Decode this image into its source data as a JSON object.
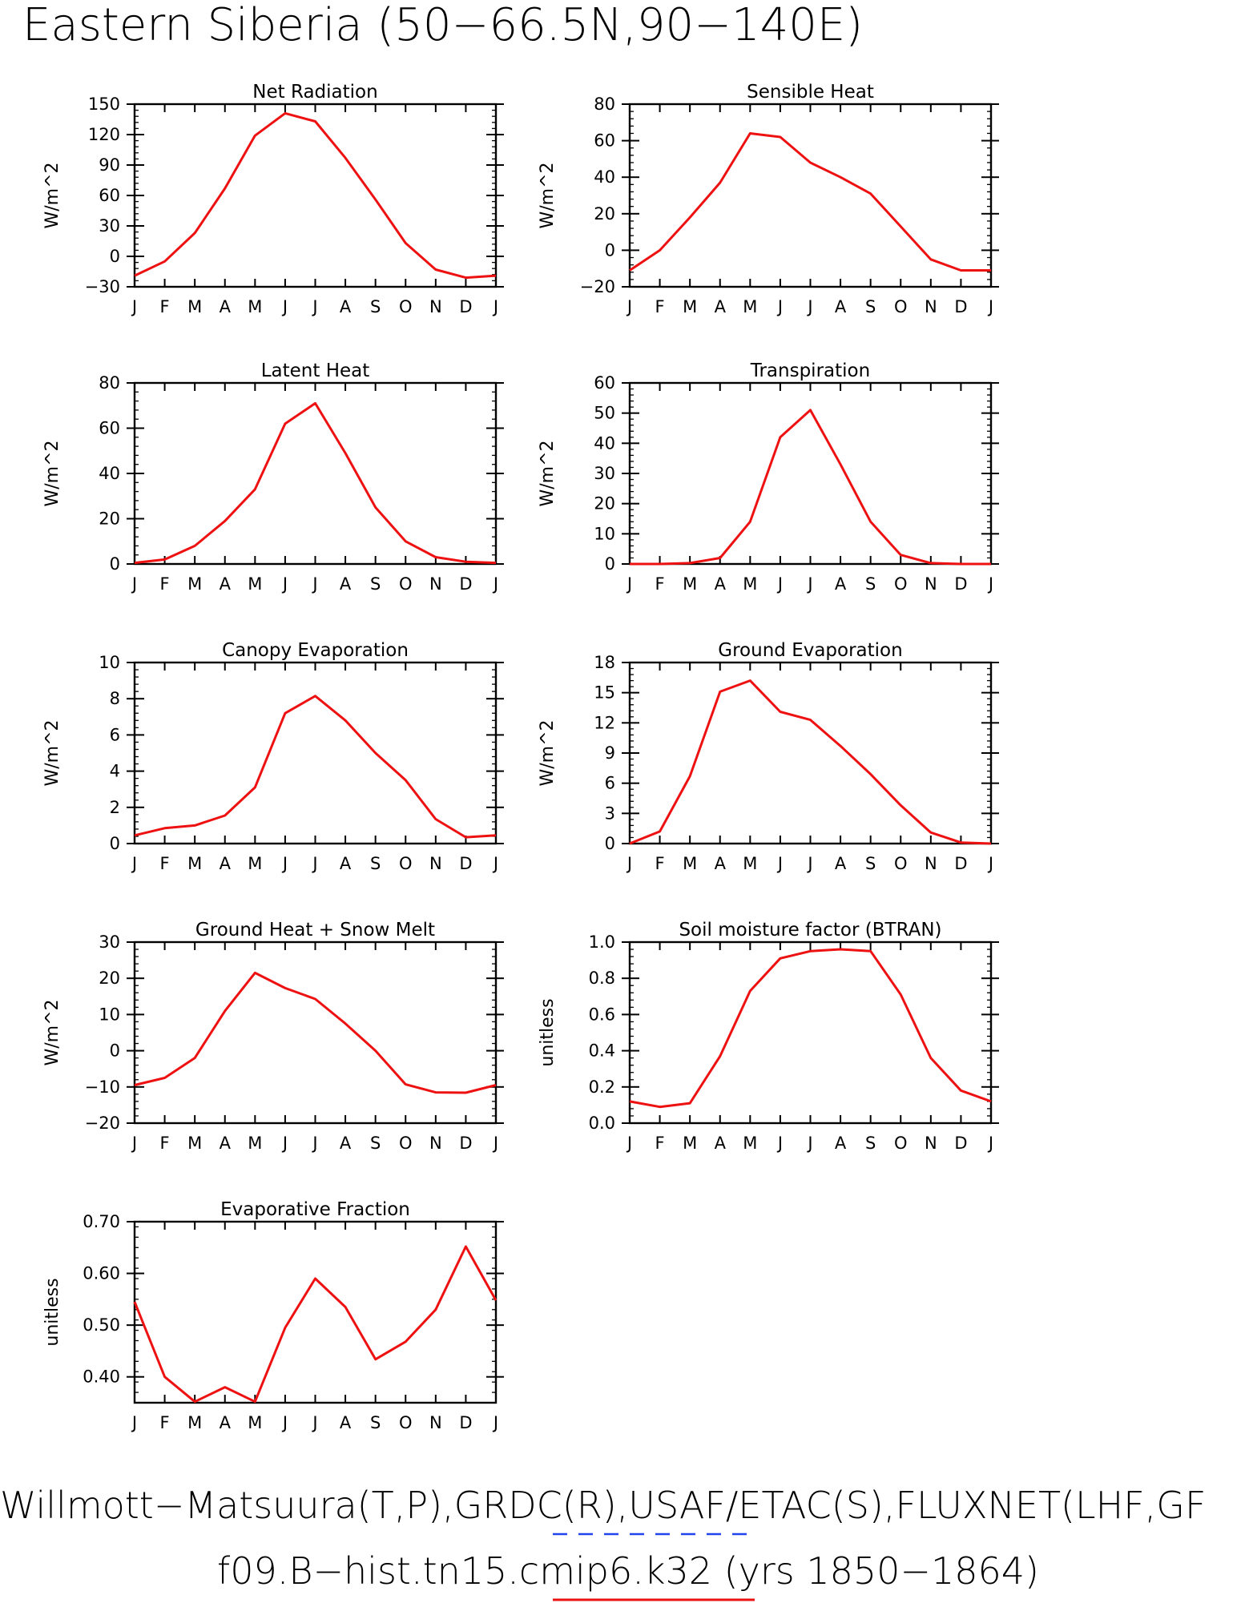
{
  "title": "Eastern Siberia (50−66.5N,90−140E)",
  "footer": {
    "line1": "Willmott−Matsuura(T,P),GRDC(R),USAF/ETAC(S),FLUXNET(LHF,GF",
    "line2": "f09.B−hist.tn15.cmip6.k32 (yrs 1850−1864)"
  },
  "colors": {
    "model_line": "#ee1111",
    "obs_line": "#2244ee"
  },
  "chart_data": [
    {
      "type": "line",
      "title": "Net Radiation",
      "ylabel": "W/m^2",
      "categories": [
        "J",
        "F",
        "M",
        "A",
        "M",
        "J",
        "J",
        "A",
        "S",
        "O",
        "N",
        "D",
        "J"
      ],
      "ylim": [
        -30,
        150
      ],
      "yticks": [
        -30,
        0,
        30,
        60,
        90,
        120,
        150
      ],
      "series": [
        {
          "values": [
            -19,
            -5,
            23,
            67,
            119,
            141,
            133,
            97,
            56,
            13,
            -13,
            -21,
            -19
          ]
        }
      ]
    },
    {
      "type": "line",
      "title": "Sensible Heat",
      "ylabel": "W/m^2",
      "categories": [
        "J",
        "F",
        "M",
        "A",
        "M",
        "J",
        "J",
        "A",
        "S",
        "O",
        "N",
        "D",
        "J"
      ],
      "ylim": [
        -20,
        80
      ],
      "yticks": [
        -20,
        0,
        20,
        40,
        60,
        80
      ],
      "series": [
        {
          "values": [
            -11,
            0,
            18,
            37,
            64,
            62,
            48,
            40,
            31,
            13,
            -5,
            -11,
            -11
          ]
        }
      ]
    },
    {
      "type": "line",
      "title": "Latent Heat",
      "ylabel": "W/m^2",
      "categories": [
        "J",
        "F",
        "M",
        "A",
        "M",
        "J",
        "J",
        "A",
        "S",
        "O",
        "N",
        "D",
        "J"
      ],
      "ylim": [
        0,
        80
      ],
      "yticks": [
        0,
        20,
        40,
        60,
        80
      ],
      "series": [
        {
          "values": [
            0.5,
            2,
            8,
            19,
            33,
            62,
            71,
            49,
            25,
            10,
            3,
            1,
            0.5
          ]
        }
      ]
    },
    {
      "type": "line",
      "title": "Transpiration",
      "ylabel": "W/m^2",
      "categories": [
        "J",
        "F",
        "M",
        "A",
        "M",
        "J",
        "J",
        "A",
        "S",
        "O",
        "N",
        "D",
        "J"
      ],
      "ylim": [
        0,
        60
      ],
      "yticks": [
        0,
        10,
        20,
        30,
        40,
        50,
        60
      ],
      "series": [
        {
          "values": [
            0,
            0,
            0.3,
            2,
            14,
            42,
            51,
            33,
            14,
            3,
            0.3,
            0,
            0
          ]
        }
      ]
    },
    {
      "type": "line",
      "title": "Canopy Evaporation",
      "ylabel": "W/m^2",
      "categories": [
        "J",
        "F",
        "M",
        "A",
        "M",
        "J",
        "J",
        "A",
        "S",
        "O",
        "N",
        "D",
        "J"
      ],
      "ylim": [
        0,
        10
      ],
      "yticks": [
        0,
        2,
        4,
        6,
        8,
        10
      ],
      "series": [
        {
          "values": [
            0.45,
            0.85,
            1.0,
            1.55,
            3.1,
            7.2,
            8.15,
            6.8,
            5.0,
            3.5,
            1.35,
            0.35,
            0.45
          ]
        }
      ]
    },
    {
      "type": "line",
      "title": "Ground Evaporation",
      "ylabel": "W/m^2",
      "categories": [
        "J",
        "F",
        "M",
        "A",
        "M",
        "J",
        "J",
        "A",
        "S",
        "O",
        "N",
        "D",
        "J"
      ],
      "ylim": [
        0,
        18
      ],
      "yticks": [
        0,
        3,
        6,
        9,
        12,
        15,
        18
      ],
      "series": [
        {
          "values": [
            0,
            1.2,
            6.7,
            15.1,
            16.2,
            13.1,
            12.3,
            9.7,
            6.9,
            3.8,
            1.1,
            0.1,
            0
          ]
        }
      ]
    },
    {
      "type": "line",
      "title": "Ground Heat + Snow Melt",
      "ylabel": "W/m^2",
      "categories": [
        "J",
        "F",
        "M",
        "A",
        "M",
        "J",
        "J",
        "A",
        "S",
        "O",
        "N",
        "D",
        "J"
      ],
      "ylim": [
        -20,
        30
      ],
      "yticks": [
        -20,
        -10,
        0,
        10,
        20,
        30
      ],
      "series": [
        {
          "values": [
            -9.5,
            -7.5,
            -2,
            11,
            21.5,
            17.3,
            14.3,
            7.5,
            0,
            -9.3,
            -11.5,
            -11.6,
            -9.5
          ]
        }
      ]
    },
    {
      "type": "line",
      "title": "Soil moisture factor (BTRAN)",
      "ylabel": "unitless",
      "categories": [
        "J",
        "F",
        "M",
        "A",
        "M",
        "J",
        "J",
        "A",
        "S",
        "O",
        "N",
        "D",
        "J"
      ],
      "ylim": [
        0,
        1.0
      ],
      "yticks": [
        0.0,
        0.2,
        0.4,
        0.6,
        0.8,
        1.0
      ],
      "ytick_decimals": 1,
      "series": [
        {
          "values": [
            0.12,
            0.09,
            0.11,
            0.37,
            0.73,
            0.91,
            0.95,
            0.96,
            0.95,
            0.71,
            0.36,
            0.18,
            0.12
          ]
        }
      ]
    },
    {
      "type": "line",
      "title": "Evaporative Fraction",
      "ylabel": "unitless",
      "categories": [
        "J",
        "F",
        "M",
        "A",
        "M",
        "J",
        "J",
        "A",
        "S",
        "O",
        "N",
        "D",
        "J"
      ],
      "ylim": [
        0.35,
        0.7
      ],
      "yticks": [
        0.4,
        0.5,
        0.6,
        0.7
      ],
      "ytick_decimals": 2,
      "series": [
        {
          "values": [
            0.545,
            0.4,
            0.352,
            0.38,
            0.352,
            0.495,
            0.59,
            0.535,
            0.434,
            0.468,
            0.53,
            0.652,
            0.548
          ]
        }
      ]
    }
  ]
}
